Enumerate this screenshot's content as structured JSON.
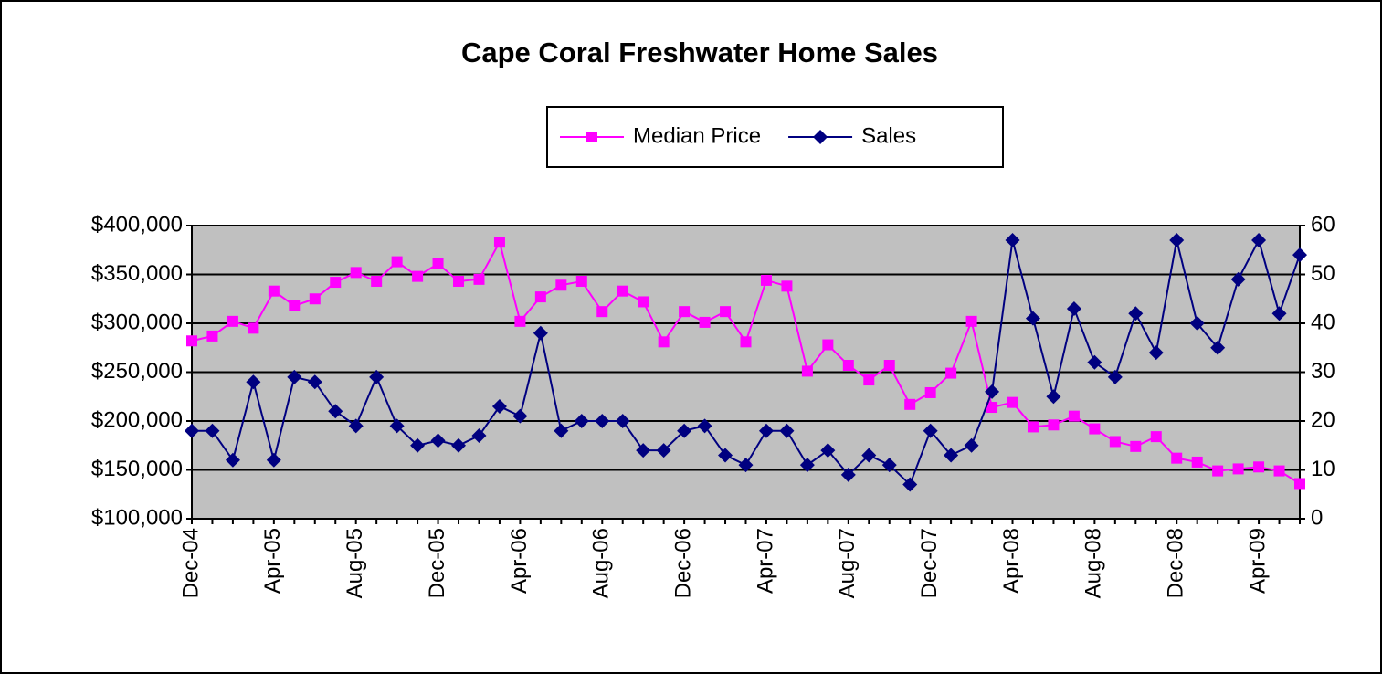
{
  "chart_data": {
    "type": "line",
    "title": "Cape Coral Freshwater Home Sales",
    "categories": [
      "Dec-04",
      null,
      null,
      null,
      "Apr-05",
      null,
      null,
      null,
      "Aug-05",
      null,
      null,
      null,
      "Dec-05",
      null,
      null,
      null,
      "Apr-06",
      null,
      null,
      null,
      "Aug-06",
      null,
      null,
      null,
      "Dec-06",
      null,
      null,
      null,
      "Apr-07",
      null,
      null,
      null,
      "Aug-07",
      null,
      null,
      null,
      "Dec-07",
      null,
      null,
      null,
      "Apr-08",
      null,
      null,
      null,
      "Aug-08",
      null,
      null,
      null,
      "Dec-08",
      null,
      null,
      null,
      "Apr-09",
      null,
      null
    ],
    "series": [
      {
        "name": "Median Price",
        "color": "#ff00ff",
        "marker": "square",
        "axis": "y",
        "values": [
          282000,
          287000,
          302000,
          295000,
          333000,
          318000,
          325000,
          342000,
          352000,
          343000,
          363000,
          348000,
          361000,
          343000,
          345000,
          383000,
          302000,
          327000,
          339000,
          343000,
          312000,
          333000,
          322000,
          281000,
          312000,
          301000,
          312000,
          281000,
          344000,
          338000,
          251000,
          278000,
          257000,
          242000,
          257000,
          217000,
          229000,
          249000,
          302000,
          214000,
          219000,
          194000,
          196000,
          205000,
          192000,
          179000,
          174000,
          184000,
          162000,
          158000,
          149000,
          151000,
          153000,
          149000,
          136000
        ]
      },
      {
        "name": "Sales",
        "color": "#000080",
        "marker": "diamond",
        "axis": "y2",
        "values": [
          18,
          18,
          12,
          28,
          12,
          29,
          28,
          22,
          19,
          29,
          19,
          15,
          16,
          15,
          17,
          23,
          21,
          38,
          18,
          20,
          20,
          20,
          14,
          14,
          18,
          19,
          13,
          11,
          18,
          18,
          11,
          14,
          9,
          13,
          11,
          7,
          18,
          13,
          15,
          26,
          57,
          41,
          25,
          43,
          32,
          29,
          42,
          34,
          57,
          40,
          35,
          49,
          57,
          42,
          54
        ]
      }
    ],
    "ylim": [
      100000,
      400000
    ],
    "yticks": [
      {
        "value": 100000,
        "label": "$100,000"
      },
      {
        "value": 150000,
        "label": "$150,000"
      },
      {
        "value": 200000,
        "label": "$200,000"
      },
      {
        "value": 250000,
        "label": "$250,000"
      },
      {
        "value": 300000,
        "label": "$300,000"
      },
      {
        "value": 350000,
        "label": "$350,000"
      },
      {
        "value": 400000,
        "label": "$400,000"
      }
    ],
    "y2lim": [
      0,
      60
    ],
    "y2ticks": [
      0,
      10,
      20,
      30,
      40,
      50,
      60
    ],
    "grid": true,
    "legend": "top",
    "plot_background": "#c0c0c0"
  }
}
